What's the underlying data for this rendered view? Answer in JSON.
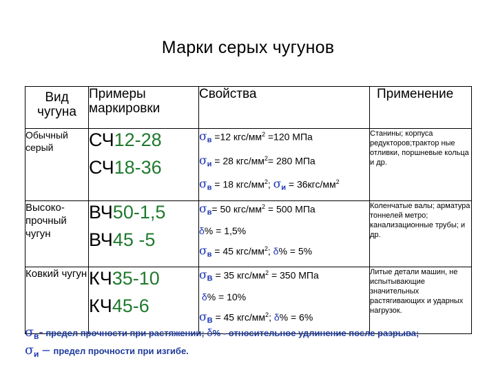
{
  "title": "Марки серых чугунов",
  "headers": {
    "type": "Вид чугуна",
    "marking": "Примеры маркировки",
    "props": "Свойства",
    "use": "Применение"
  },
  "rows": [
    {
      "type": "Обычный серый",
      "marks": [
        {
          "prefix": "СЧ",
          "num": "12-28"
        },
        {
          "prefix": "СЧ",
          "num": "18-36"
        }
      ],
      "props": {
        "l1": {
          "sym": "σ",
          "sub": "в",
          "text": " =12 кгс/мм",
          "sup": "2",
          "after": " =120 МПа"
        },
        "l2": {
          "sym": "σ",
          "sub": "и",
          "text": " = 28 кгс/мм",
          "sup": "2",
          "after": "= 280 МПа"
        },
        "l3a": {
          "sym": "σ",
          "sub": "в",
          "text": " = 18 кгс/мм",
          "sup": "2",
          "after": ";"
        },
        "l3b": {
          "sym": "σ",
          "sub": "и",
          "text": " = 36кгс/мм",
          "sup": "2"
        }
      },
      "use": "Станины; корпуса редукторов;трактор ные отливки, поршневые кольца и др."
    },
    {
      "type": "Высоко-прочный чугун",
      "marks": [
        {
          "prefix": "ВЧ",
          "num": "50-1,5"
        },
        {
          "prefix": "ВЧ",
          "num": "45 -5"
        }
      ],
      "props": {
        "l1": {
          "sym": "σ",
          "sub": "в",
          "text": "= 50 кгс/мм",
          "sup": "2",
          "after": " = 500 МПа"
        },
        "l2": {
          "delta": "δ",
          "text": "% = 1,5%"
        },
        "l3": {
          "sym": "σ",
          "sub": "в",
          "text": " = 45 кгс/мм",
          "sup": "2",
          "after": "; ",
          "delta": "δ",
          "after2": "% = 5%"
        }
      },
      "use": "Коленчатые валы; арматура тоннелей метро; канализационные трубы; и др."
    },
    {
      "type": "Ковкий чугун",
      "marks": [
        {
          "prefix": "КЧ",
          "num": "35-10"
        },
        {
          "prefix": "КЧ",
          "num": "45-6"
        }
      ],
      "props": {
        "l1": {
          "sym": "σ",
          "sub": "В",
          "text": " = 35 кгс/мм",
          "sup": "2",
          "after": " = 350 МПа"
        },
        "l2": {
          "delta": "δ",
          "text": "% = 10%"
        },
        "l3": {
          "sym": "σ",
          "sub": "В",
          "text": " = 45 кгс/мм",
          "sup": "2",
          "after": "; ",
          "delta": "δ",
          "after2": "% = 6%"
        }
      },
      "use": "Литые детали машин, не испытывающие значительных растягивающих и ударных нагрузок."
    }
  ],
  "footnotes": {
    "f1": {
      "sym": "σ",
      "sub": "в",
      "dash": "-",
      "text": " предел прочности при растяжении; ",
      "delta": "δ",
      "text2": "% - относительное удлинение после разрыва;"
    },
    "f2": {
      "sym": "σ",
      "sub": "и",
      "dash": " – ",
      "text": " предел прочности при изгибе."
    }
  },
  "colors": {
    "green": "#1f7a2e",
    "blue": "#1c35b5"
  }
}
